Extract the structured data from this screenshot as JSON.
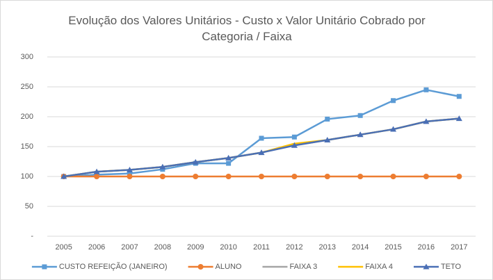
{
  "chart_data": {
    "type": "line",
    "title": "Evolução dos Valores Unitários - Custo x Valor Unitário Cobrado por Categoria / Faixa",
    "categories": [
      "2005",
      "2006",
      "2007",
      "2008",
      "2009",
      "2010",
      "2011",
      "2012",
      "2013",
      "2014",
      "2015",
      "2016",
      "2017"
    ],
    "series": [
      {
        "name": "CUSTO REFEIÇÃO (JANEIRO)",
        "color": "#5b9bd5",
        "marker": "square",
        "values": [
          100,
          103,
          105,
          112,
          122,
          122,
          164,
          166,
          196,
          202,
          227,
          245,
          234
        ]
      },
      {
        "name": "ALUNO",
        "color": "#ed7d31",
        "marker": "circle",
        "values": [
          100,
          100,
          100,
          100,
          100,
          100,
          100,
          100,
          100,
          100,
          100,
          100,
          100
        ]
      },
      {
        "name": "FAIXA 3",
        "color": "#a5a5a5",
        "marker": "none",
        "values": [
          100,
          108,
          111,
          116,
          124,
          131,
          140,
          152,
          161,
          170,
          179,
          192,
          197
        ]
      },
      {
        "name": "FAIXA 4",
        "color": "#ffc000",
        "marker": "none",
        "values": [
          100,
          108,
          111,
          116,
          124,
          131,
          140,
          155,
          161,
          170,
          179,
          192,
          197
        ]
      },
      {
        "name": "TETO",
        "color": "#4a6fb5",
        "marker": "triangle",
        "values": [
          100,
          108,
          111,
          116,
          124,
          131,
          140,
          152,
          161,
          170,
          179,
          192,
          197
        ]
      }
    ],
    "ylim": [
      0,
      300
    ],
    "yticks": [
      {
        "value": 0,
        "label": "-"
      },
      50,
      100,
      150,
      200,
      250,
      300
    ],
    "grid": true,
    "legend": "bottom"
  }
}
